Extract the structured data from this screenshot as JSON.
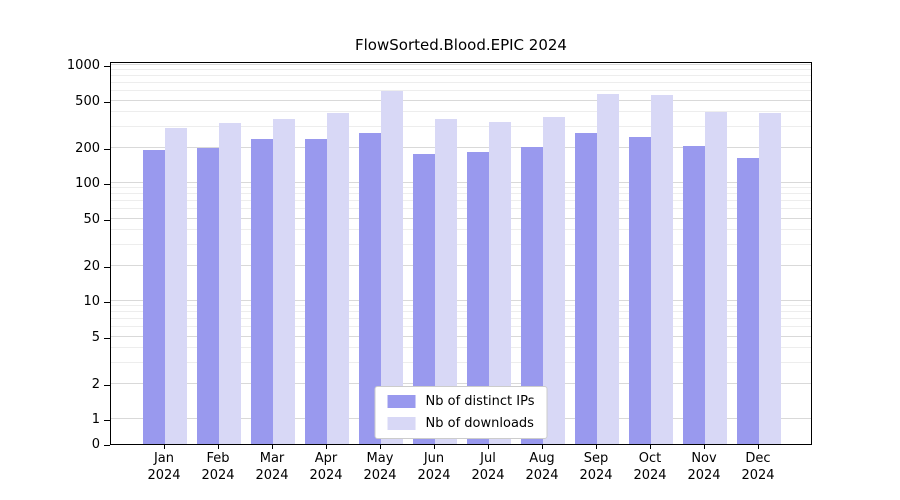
{
  "title": "FlowSorted.Blood.EPIC 2024",
  "chart_data": {
    "type": "bar",
    "title": "FlowSorted.Blood.EPIC 2024",
    "year": "2024",
    "categories": [
      "Jan",
      "Feb",
      "Mar",
      "Apr",
      "May",
      "Jun",
      "Jul",
      "Aug",
      "Sep",
      "Oct",
      "Nov",
      "Dec"
    ],
    "series": [
      {
        "name": "Nb of distinct IPs",
        "color": "#9999ee",
        "values": [
          190,
          198,
          235,
          238,
          265,
          175,
          185,
          203,
          268,
          248,
          208,
          162
        ]
      },
      {
        "name": "Nb of downloads",
        "color": "#d8d8f6",
        "values": [
          290,
          320,
          350,
          395,
          600,
          350,
          330,
          360,
          570,
          555,
          400,
          390
        ]
      }
    ],
    "yscale": "symlog",
    "yticks": [
      0,
      1,
      2,
      5,
      10,
      20,
      50,
      100,
      200,
      500,
      1000
    ],
    "ylim": [
      0,
      1000
    ],
    "xlabel": "",
    "ylabel": "",
    "grid": true,
    "legend_position": "lower center"
  },
  "legend": {
    "ips_label": "Nb of distinct IPs",
    "downloads_label": "Nb of downloads"
  },
  "colors": {
    "ips": "#9999ee",
    "downloads": "#d8d8f6",
    "grid_major": "#d9d9d9",
    "grid_minor": "#ededed",
    "frame": "#000000"
  }
}
